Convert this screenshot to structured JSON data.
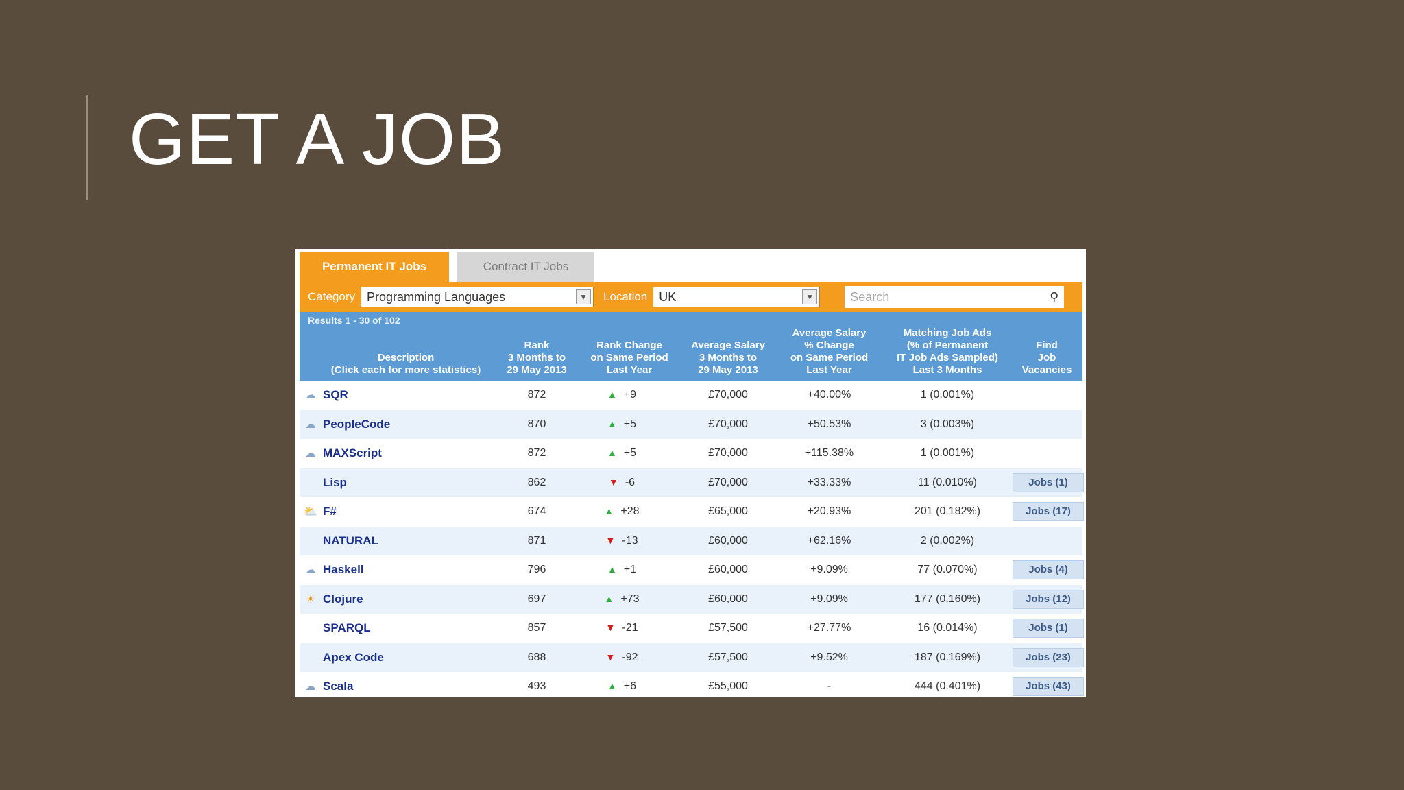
{
  "slide": {
    "title": "GET A JOB"
  },
  "tabs": [
    {
      "label": "Permanent IT Jobs",
      "active": true
    },
    {
      "label": "Contract IT Jobs",
      "active": false
    }
  ],
  "filters": {
    "category_label": "Category",
    "category_value": "Programming Languages",
    "location_label": "Location",
    "location_value": "UK",
    "search_placeholder": "Search"
  },
  "results_text": "Results 1 - 30 of 102",
  "headers": {
    "description": "Description\n(Click each for more statistics)",
    "rank": "Rank\n3 Months to\n29 May 2013",
    "rank_change": "Rank Change\non Same Period\nLast Year",
    "avg_salary": "Average Salary\n3 Months to\n29 May 2013",
    "salary_change": "Average Salary\n% Change\non Same Period\nLast Year",
    "matching": "Matching Job Ads\n(% of Permanent\nIT Job Ads Sampled)\nLast 3 Months",
    "find": "Find\nJob\nVacancies"
  },
  "rows": [
    {
      "icon": "cloud-icon",
      "name": "SQR",
      "rank": "872",
      "dir": "up",
      "change": "+9",
      "salary": "£70,000",
      "pct": "+40.00%",
      "ads": "1 (0.001%)",
      "jobs": ""
    },
    {
      "icon": "cloud-icon",
      "name": "PeopleCode",
      "rank": "870",
      "dir": "up",
      "change": "+5",
      "salary": "£70,000",
      "pct": "+50.53%",
      "ads": "3 (0.003%)",
      "jobs": ""
    },
    {
      "icon": "cloud-icon",
      "name": "MAXScript",
      "rank": "872",
      "dir": "up",
      "change": "+5",
      "salary": "£70,000",
      "pct": "+115.38%",
      "ads": "1 (0.001%)",
      "jobs": ""
    },
    {
      "icon": "",
      "name": "Lisp",
      "rank": "862",
      "dir": "down",
      "change": "-6",
      "salary": "£70,000",
      "pct": "+33.33%",
      "ads": "11 (0.010%)",
      "jobs": "Jobs (1)"
    },
    {
      "icon": "sun-cloud-icon",
      "name": "F#",
      "rank": "674",
      "dir": "up",
      "change": "+28",
      "salary": "£65,000",
      "pct": "+20.93%",
      "ads": "201 (0.182%)",
      "jobs": "Jobs (17)"
    },
    {
      "icon": "",
      "name": "NATURAL",
      "rank": "871",
      "dir": "down",
      "change": "-13",
      "salary": "£60,000",
      "pct": "+62.16%",
      "ads": "2 (0.002%)",
      "jobs": ""
    },
    {
      "icon": "cloud-icon",
      "name": "Haskell",
      "rank": "796",
      "dir": "up",
      "change": "+1",
      "salary": "£60,000",
      "pct": "+9.09%",
      "ads": "77 (0.070%)",
      "jobs": "Jobs (4)"
    },
    {
      "icon": "sun-icon",
      "name": "Clojure",
      "rank": "697",
      "dir": "up",
      "change": "+73",
      "salary": "£60,000",
      "pct": "+9.09%",
      "ads": "177 (0.160%)",
      "jobs": "Jobs (12)"
    },
    {
      "icon": "",
      "name": "SPARQL",
      "rank": "857",
      "dir": "down",
      "change": "-21",
      "salary": "£57,500",
      "pct": "+27.77%",
      "ads": "16 (0.014%)",
      "jobs": "Jobs (1)"
    },
    {
      "icon": "",
      "name": "Apex Code",
      "rank": "688",
      "dir": "down",
      "change": "-92",
      "salary": "£57,500",
      "pct": "+9.52%",
      "ads": "187 (0.169%)",
      "jobs": "Jobs (23)"
    },
    {
      "icon": "cloud-icon",
      "name": "Scala",
      "rank": "493",
      "dir": "up",
      "change": "+6",
      "salary": "£55,000",
      "pct": "-",
      "ads": "444 (0.401%)",
      "jobs": "Jobs (43)"
    }
  ],
  "colors": {
    "background": "#594c3d",
    "tab_active": "#f39c1e",
    "header": "#5d9bd5",
    "link": "#1a2f8a"
  }
}
